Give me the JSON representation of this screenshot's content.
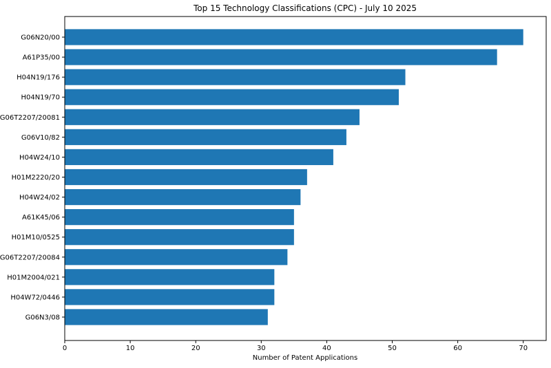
{
  "chart_data": {
    "type": "bar",
    "orientation": "horizontal",
    "title": "Top 15 Technology Classifications (CPC) - July 10 2025",
    "xlabel": "Number of Patent Applications",
    "ylabel": "",
    "xlim": [
      0,
      73.5
    ],
    "xticks": [
      0,
      10,
      20,
      30,
      40,
      50,
      60,
      70
    ],
    "grid": false,
    "bar_color": "#1f77b4",
    "categories": [
      "G06N20/00",
      "A61P35/00",
      "H04N19/176",
      "H04N19/70",
      "G06T2207/20081",
      "G06V10/82",
      "H04W24/10",
      "H01M2220/20",
      "H04W24/02",
      "A61K45/06",
      "H01M10/0525",
      "G06T2207/20084",
      "H01M2004/021",
      "H04W72/0446",
      "G06N3/08"
    ],
    "values": [
      70,
      66,
      52,
      51,
      45,
      43,
      41,
      37,
      36,
      35,
      35,
      34,
      32,
      32,
      31
    ]
  }
}
